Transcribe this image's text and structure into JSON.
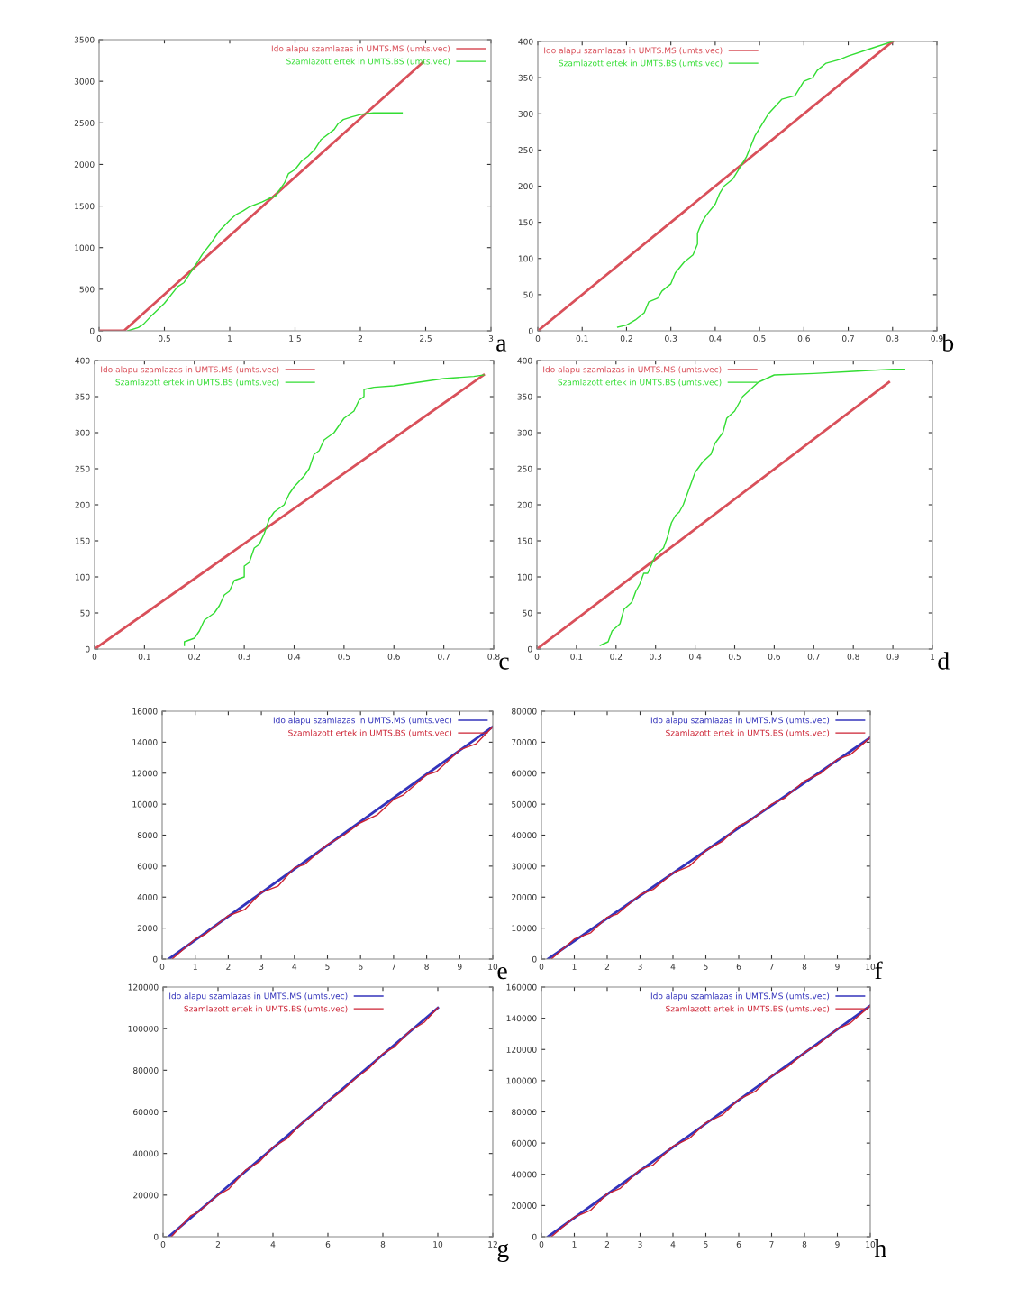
{
  "chart_data": [
    {
      "type": "line",
      "xlim": [
        0,
        3
      ],
      "xticks": [
        0,
        0.5,
        1,
        1.5,
        2,
        2.5,
        3
      ],
      "ylim": [
        0,
        3500
      ],
      "yticks": [
        0,
        500,
        1000,
        1500,
        2000,
        2500,
        3000,
        3500
      ],
      "grid": false,
      "legend": "top right",
      "annotations": [
        "a"
      ],
      "series": [
        {
          "name": "Ido alapu szamlazas in UMTS.MS (umts.vec)",
          "color": "#d9505a",
          "x": [
            0,
            0.19,
            2.48
          ],
          "values": [
            0,
            0,
            3230
          ]
        },
        {
          "name": "Szamlazott ertek in UMTS.BS (umts.vec)",
          "color": "#33dd33",
          "x": [
            0.22,
            0.3,
            0.34,
            0.4,
            0.5,
            0.6,
            0.65,
            0.7,
            0.75,
            0.79,
            0.85,
            0.92,
            1,
            1.05,
            1.1,
            1.15,
            1.25,
            1.3,
            1.35,
            1.42,
            1.45,
            1.5,
            1.55,
            1.6,
            1.65,
            1.7,
            1.8,
            1.83,
            1.87,
            1.93,
            2,
            2.1,
            2.2,
            2.32
          ],
          "values": [
            0,
            40,
            80,
            180,
            330,
            530,
            580,
            700,
            820,
            920,
            1040,
            1200,
            1330,
            1400,
            1440,
            1490,
            1550,
            1590,
            1620,
            1780,
            1890,
            1940,
            2040,
            2100,
            2180,
            2300,
            2420,
            2490,
            2540,
            2570,
            2600,
            2620,
            2620,
            2620
          ]
        }
      ]
    },
    {
      "type": "line",
      "xlim": [
        0,
        0.9
      ],
      "xticks": [
        0,
        0.1,
        0.2,
        0.3,
        0.4,
        0.5,
        0.6,
        0.7,
        0.8,
        0.9
      ],
      "ylim": [
        0,
        400
      ],
      "yticks": [
        0,
        50,
        100,
        150,
        200,
        250,
        300,
        350,
        400
      ],
      "grid": false,
      "legend": "top left",
      "annotations": [
        "b"
      ],
      "series": [
        {
          "name": "Ido alapu szamlazas in UMTS.MS (umts.vec)",
          "color": "#d9505a",
          "x": [
            0,
            0.8
          ],
          "values": [
            0,
            400
          ]
        },
        {
          "name": "Szamlazott ertek in UMTS.BS (umts.vec)",
          "color": "#33dd33",
          "x": [
            0.18,
            0.2,
            0.22,
            0.24,
            0.25,
            0.27,
            0.28,
            0.3,
            0.31,
            0.33,
            0.35,
            0.36,
            0.36,
            0.37,
            0.38,
            0.4,
            0.41,
            0.42,
            0.44,
            0.45,
            0.46,
            0.47,
            0.48,
            0.49,
            0.51,
            0.52,
            0.55,
            0.58,
            0.6,
            0.62,
            0.63,
            0.65,
            0.68,
            0.7,
            0.75,
            0.8
          ],
          "values": [
            5,
            8,
            15,
            25,
            40,
            45,
            55,
            65,
            80,
            95,
            105,
            120,
            135,
            150,
            160,
            175,
            190,
            200,
            210,
            220,
            230,
            240,
            255,
            270,
            290,
            300,
            320,
            325,
            345,
            350,
            360,
            370,
            375,
            380,
            390,
            400
          ]
        }
      ]
    },
    {
      "type": "line",
      "xlim": [
        0,
        0.8
      ],
      "xticks": [
        0,
        0.1,
        0.2,
        0.3,
        0.4,
        0.5,
        0.6,
        0.7,
        0.8
      ],
      "ylim": [
        0,
        400
      ],
      "yticks": [
        0,
        50,
        100,
        150,
        200,
        250,
        300,
        350,
        400
      ],
      "grid": false,
      "legend": "top left",
      "annotations": [
        "c"
      ],
      "series": [
        {
          "name": "Ido alapu szamlazas in UMTS.MS (umts.vec)",
          "color": "#d9505a",
          "x": [
            0,
            0.78
          ],
          "values": [
            0,
            380
          ]
        },
        {
          "name": "Szamlazott ertek in UMTS.BS (umts.vec)",
          "color": "#33dd33",
          "x": [
            0.18,
            0.18,
            0.2,
            0.21,
            0.22,
            0.24,
            0.25,
            0.26,
            0.27,
            0.28,
            0.3,
            0.3,
            0.31,
            0.32,
            0.33,
            0.34,
            0.35,
            0.36,
            0.38,
            0.39,
            0.4,
            0.42,
            0.43,
            0.44,
            0.45,
            0.46,
            0.48,
            0.49,
            0.5,
            0.52,
            0.53,
            0.54,
            0.54,
            0.56,
            0.6,
            0.65,
            0.7,
            0.76,
            0.78
          ],
          "values": [
            5,
            10,
            15,
            25,
            40,
            50,
            60,
            75,
            80,
            95,
            100,
            115,
            120,
            140,
            145,
            160,
            180,
            190,
            200,
            215,
            225,
            240,
            250,
            270,
            275,
            290,
            300,
            310,
            320,
            330,
            345,
            350,
            360,
            363,
            365,
            370,
            375,
            378,
            380
          ]
        }
      ]
    },
    {
      "type": "line",
      "xlim": [
        0,
        1
      ],
      "xticks": [
        0,
        0.1,
        0.2,
        0.3,
        0.4,
        0.5,
        0.6,
        0.7,
        0.8,
        0.9,
        1
      ],
      "ylim": [
        0,
        400
      ],
      "yticks": [
        0,
        50,
        100,
        150,
        200,
        250,
        300,
        350,
        400
      ],
      "grid": false,
      "legend": "top left",
      "annotations": [
        "d"
      ],
      "series": [
        {
          "name": "Ido alapu szamlazas in UMTS.MS (umts.vec)",
          "color": "#d9505a",
          "x": [
            0,
            0.89
          ],
          "values": [
            0,
            370
          ]
        },
        {
          "name": "Szamlazott ertek in UMTS.BS (umts.vec)",
          "color": "#33dd33",
          "x": [
            0.16,
            0.18,
            0.19,
            0.21,
            0.22,
            0.24,
            0.25,
            0.26,
            0.27,
            0.28,
            0.3,
            0.32,
            0.33,
            0.34,
            0.35,
            0.36,
            0.37,
            0.38,
            0.39,
            0.4,
            0.42,
            0.44,
            0.45,
            0.47,
            0.48,
            0.5,
            0.52,
            0.54,
            0.56,
            0.6,
            0.7,
            0.8,
            0.9,
            0.93
          ],
          "values": [
            5,
            10,
            25,
            35,
            55,
            65,
            80,
            90,
            105,
            105,
            130,
            140,
            155,
            175,
            185,
            190,
            200,
            215,
            230,
            245,
            260,
            270,
            285,
            300,
            320,
            330,
            350,
            360,
            370,
            380,
            382,
            385,
            388,
            388
          ]
        }
      ]
    },
    {
      "type": "line",
      "xlim": [
        0,
        10
      ],
      "xticks": [
        0,
        1,
        2,
        3,
        4,
        5,
        6,
        7,
        8,
        9,
        10
      ],
      "ylim": [
        0,
        16000
      ],
      "yticks": [
        0,
        2000,
        4000,
        6000,
        8000,
        10000,
        12000,
        14000,
        16000
      ],
      "grid": false,
      "legend": "top right",
      "annotations": [
        "e"
      ],
      "series": [
        {
          "name": "Ido alapu szamlazas in UMTS.MS (umts.vec)",
          "color": "#3333bb",
          "x": [
            0.2,
            10
          ],
          "values": [
            0,
            15000
          ]
        },
        {
          "name": "Szamlazott ertek in UMTS.BS (umts.vec)",
          "color": "#cc2233",
          "x": [
            0.3,
            1,
            1.3,
            2,
            2.5,
            3,
            3.5,
            4,
            4.3,
            5,
            5.5,
            6,
            6.5,
            7,
            7.3,
            8,
            8.3,
            9,
            9.5,
            10
          ],
          "values": [
            0,
            1300,
            1600,
            2800,
            3200,
            4300,
            4700,
            5900,
            6100,
            7400,
            8000,
            8800,
            9300,
            10300,
            10600,
            11900,
            12100,
            13500,
            13900,
            15000
          ]
        }
      ]
    },
    {
      "type": "line",
      "xlim": [
        0,
        10
      ],
      "xticks": [
        0,
        1,
        2,
        3,
        4,
        5,
        6,
        7,
        8,
        9,
        10
      ],
      "ylim": [
        0,
        80000
      ],
      "yticks": [
        0,
        10000,
        20000,
        30000,
        40000,
        50000,
        60000,
        70000,
        80000
      ],
      "grid": false,
      "legend": "top right",
      "annotations": [
        "f"
      ],
      "series": [
        {
          "name": "Ido alapu szamlazas in UMTS.MS (umts.vec)",
          "color": "#3333bb",
          "x": [
            0.2,
            10
          ],
          "values": [
            0,
            71500
          ]
        },
        {
          "name": "Szamlazott ertek in UMTS.BS (umts.vec)",
          "color": "#cc2233",
          "x": [
            0.3,
            1,
            1.5,
            2,
            2.3,
            3,
            3.4,
            4,
            4.5,
            5,
            5.5,
            6,
            6.4,
            7,
            7.4,
            8,
            8.5,
            9,
            9.4,
            10
          ],
          "values": [
            0,
            6500,
            8500,
            13500,
            14500,
            20800,
            22500,
            27800,
            30000,
            35000,
            38000,
            43000,
            45000,
            50000,
            52000,
            57500,
            60000,
            64500,
            66000,
            71500
          ]
        }
      ]
    },
    {
      "type": "line",
      "xlim": [
        0,
        12
      ],
      "xticks": [
        0,
        2,
        4,
        6,
        8,
        10,
        12
      ],
      "ylim": [
        0,
        120000
      ],
      "yticks": [
        0,
        20000,
        40000,
        60000,
        80000,
        100000,
        120000
      ],
      "grid": false,
      "legend": "top left",
      "annotations": [
        "g"
      ],
      "series": [
        {
          "name": "Ido alapu szamlazas in UMTS.MS (umts.vec)",
          "color": "#3333bb",
          "x": [
            0.2,
            10
          ],
          "values": [
            0,
            110000
          ]
        },
        {
          "name": "Szamlazott ertek in UMTS.BS (umts.vec)",
          "color": "#cc2233",
          "x": [
            0.3,
            1,
            1.3,
            2,
            2.4,
            3,
            3.5,
            4,
            4.5,
            5,
            5.5,
            6,
            6.5,
            7,
            7.5,
            8,
            8.4,
            9,
            9.5,
            10
          ],
          "values": [
            0,
            10000,
            12000,
            20000,
            23000,
            32000,
            36000,
            43000,
            47000,
            54000,
            59000,
            65000,
            70000,
            76000,
            81000,
            88000,
            91000,
            99000,
            103000,
            110000
          ]
        }
      ]
    },
    {
      "type": "line",
      "xlim": [
        0,
        10
      ],
      "xticks": [
        0,
        1,
        2,
        3,
        4,
        5,
        6,
        7,
        8,
        9,
        10
      ],
      "ylim": [
        0,
        160000
      ],
      "yticks": [
        0,
        20000,
        40000,
        60000,
        80000,
        100000,
        120000,
        140000,
        160000
      ],
      "grid": false,
      "legend": "top right",
      "annotations": [
        "h"
      ],
      "series": [
        {
          "name": "Ido alapu szamlazas in UMTS.MS (umts.vec)",
          "color": "#3333bb",
          "x": [
            0.2,
            10
          ],
          "values": [
            0,
            148000
          ]
        },
        {
          "name": "Szamlazott ertek in UMTS.BS (umts.vec)",
          "color": "#cc2233",
          "x": [
            0.3,
            1,
            1.5,
            2,
            2.4,
            3,
            3.4,
            4,
            4.5,
            5,
            5.5,
            6,
            6.5,
            7,
            7.5,
            8,
            8.4,
            9,
            9.4,
            10
          ],
          "values": [
            0,
            12500,
            17000,
            27500,
            31000,
            43000,
            46000,
            58000,
            63000,
            73000,
            78000,
            88000,
            93000,
            103000,
            109000,
            118000,
            123000,
            133000,
            137000,
            148000
          ]
        }
      ]
    }
  ]
}
